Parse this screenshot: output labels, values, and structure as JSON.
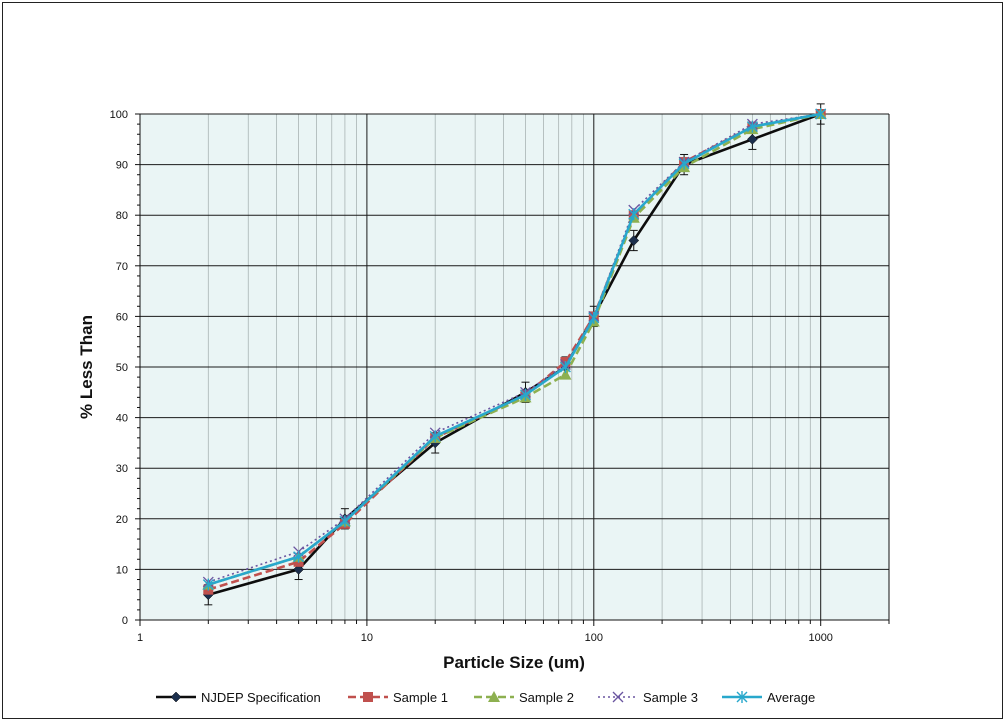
{
  "chart_data": {
    "type": "line",
    "xlabel": "Particle Size (um)",
    "ylabel": "% Less Than",
    "x_scale": "log",
    "xlim": [
      1,
      2000
    ],
    "ylim": [
      0,
      100
    ],
    "x_ticks": [
      1,
      10,
      100,
      1000
    ],
    "x_tick_labels": [
      "1",
      "10",
      "100",
      "1000"
    ],
    "y_ticks": [
      0,
      10,
      20,
      30,
      40,
      50,
      60,
      70,
      80,
      90,
      100
    ],
    "y_tick_labels": [
      "0",
      "10",
      "20",
      "30",
      "40",
      "50",
      "60",
      "70",
      "80",
      "90",
      "100"
    ],
    "grid": true,
    "legend_position": "bottom",
    "background_color": "#eaf5f5",
    "series": [
      {
        "name": "NJDEP Specification",
        "color": "#0d0d0d",
        "marker": "diamond",
        "dash": "solid",
        "error_bars": 2,
        "x": [
          2,
          5,
          8,
          20,
          50,
          75,
          100,
          150,
          250,
          500,
          1000
        ],
        "y": [
          5,
          10,
          20,
          35,
          45,
          50,
          60,
          75,
          90,
          95,
          100
        ]
      },
      {
        "name": "Sample 1",
        "color": "#c0504d",
        "marker": "square",
        "dash": "dashed",
        "x": [
          2,
          5,
          8,
          20,
          50,
          75,
          100,
          150,
          250,
          500,
          1000
        ],
        "y": [
          6,
          11.5,
          19,
          36,
          44.5,
          51,
          60,
          80,
          90.5,
          97.5,
          100
        ]
      },
      {
        "name": "Sample 2",
        "color": "#8db050",
        "marker": "triangle",
        "dash": "dashed",
        "x": [
          2,
          5,
          8,
          20,
          50,
          75,
          100,
          150,
          250,
          500,
          1000
        ],
        "y": [
          7,
          12.5,
          19.5,
          36,
          44,
          48.5,
          59,
          79.5,
          89.5,
          97,
          100
        ]
      },
      {
        "name": "Sample 3",
        "color": "#6a55a0",
        "marker": "x",
        "dash": "dotted",
        "x": [
          2,
          5,
          8,
          20,
          50,
          75,
          100,
          150,
          250,
          500,
          1000
        ],
        "y": [
          7.5,
          13.5,
          20,
          37,
          45,
          50.5,
          60,
          81,
          90.5,
          98,
          100
        ]
      },
      {
        "name": "Average",
        "color": "#28a8cc",
        "marker": "star",
        "dash": "solid",
        "x": [
          2,
          5,
          8,
          20,
          50,
          75,
          100,
          150,
          250,
          500,
          1000
        ],
        "y": [
          7,
          12.5,
          19.5,
          36.3,
          44.5,
          50,
          59.7,
          80.2,
          90.2,
          97.5,
          100
        ]
      }
    ]
  }
}
